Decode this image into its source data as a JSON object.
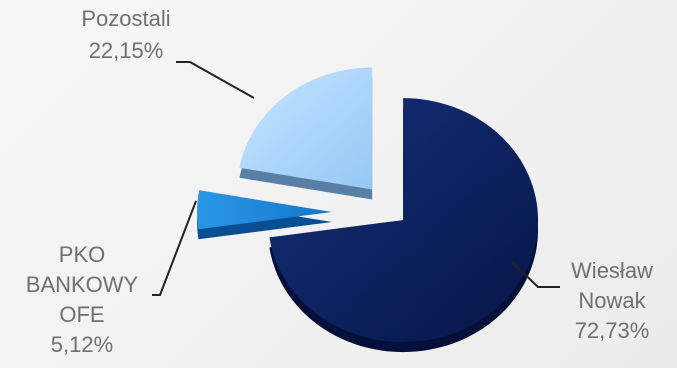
{
  "chart_data": {
    "type": "pie",
    "style": "3d-exploded",
    "slices": [
      {
        "name": "Wiesław Nowak",
        "value": 72.73,
        "label_lines": [
          "Wiesław",
          "Nowak",
          "72,73%"
        ],
        "color": "#0b2263"
      },
      {
        "name": "PKO BANKOWY OFE",
        "value": 5.12,
        "label_lines": [
          "PKO",
          "BANKOWY",
          "OFE",
          "5,12%"
        ],
        "color": "#1e88d8"
      },
      {
        "name": "Pozostali",
        "value": 22.15,
        "label_lines": [
          "Pozostali",
          "22,15%"
        ],
        "color": "#a8d4fa"
      }
    ]
  },
  "colors": {
    "background": "#f2f2f2",
    "label_text": "#707070",
    "leader_line": "#222222"
  }
}
